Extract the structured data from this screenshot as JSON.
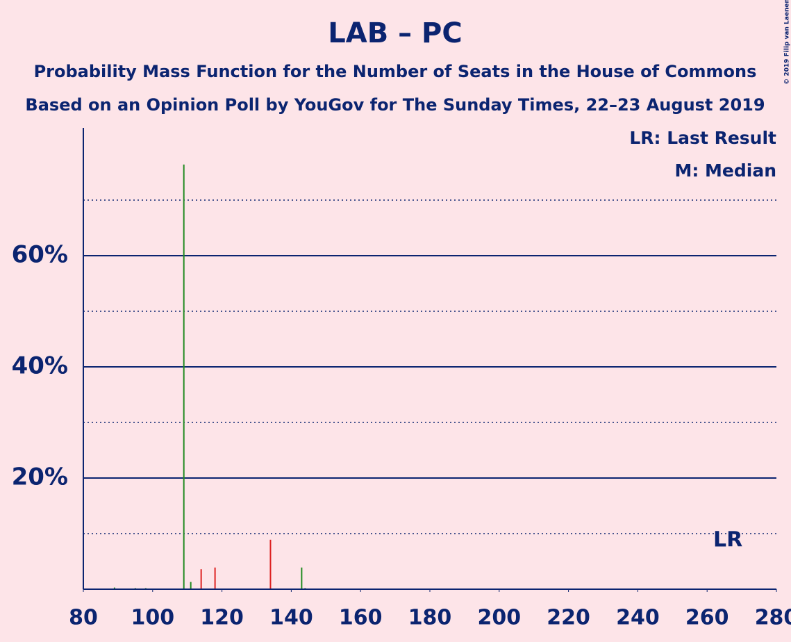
{
  "chart_data": {
    "type": "bar",
    "title": "LAB – PC",
    "subtitle": "Probability Mass Function for the Number of Seats in the House of Commons",
    "subtitle2": "Based on an Opinion Poll by YouGov for The Sunday Times, 22–23 August 2019",
    "legend": [
      "LR: Last Result",
      "M: Median"
    ],
    "copyright": "© 2019 Filip van Laenen",
    "x": [
      89,
      95,
      98,
      109,
      111,
      114,
      118,
      134,
      143,
      144
    ],
    "values": [
      0.3,
      0.2,
      0.2,
      76.4,
      1.3,
      3.6,
      3.9,
      8.9,
      3.9,
      0.2
    ],
    "colors": [
      "#228b22",
      "#228b22",
      "#228b22",
      "#228b22",
      "#228b22",
      "#dd2222",
      "#dd2222",
      "#dd2222",
      "#228b22",
      "#228b22"
    ],
    "xlim": [
      80,
      280
    ],
    "xticks": [
      80,
      100,
      120,
      140,
      160,
      180,
      200,
      220,
      240,
      260,
      280
    ],
    "ylim": [
      0,
      83
    ],
    "yticks": [
      {
        "value": 20,
        "label": "20%"
      },
      {
        "value": 40,
        "label": "40%"
      },
      {
        "value": 60,
        "label": "60%"
      }
    ],
    "minor_grid": [
      10,
      30,
      50,
      70
    ],
    "annotations": [
      {
        "text": "LR",
        "x": 266
      }
    ]
  }
}
